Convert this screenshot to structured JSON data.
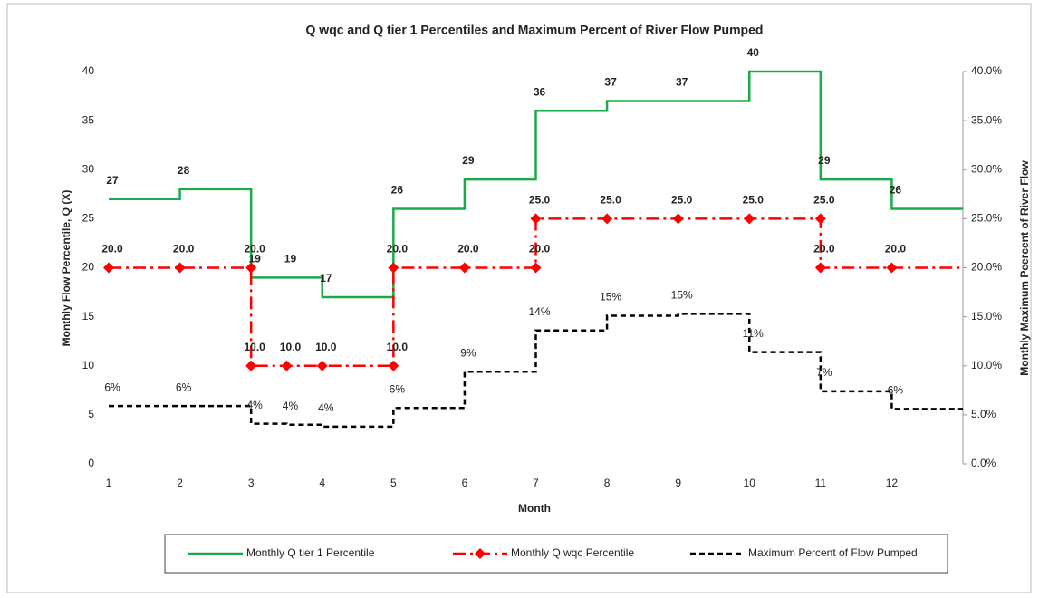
{
  "chart_data": {
    "type": "line",
    "title": "Q wqc and Q tier 1 Percentiles and Maximum Percent of River Flow Pumped",
    "xlabel": "Month",
    "ylabel": "Monthly Flow Percentile, Q (X)",
    "y2label": "Monthly Maximum Peercent of River Flow",
    "xlim": [
      1,
      13
    ],
    "xticks": [
      1,
      2,
      3,
      4,
      5,
      6,
      7,
      8,
      9,
      10,
      11,
      12
    ],
    "ylim": [
      0,
      40
    ],
    "yticks": [
      0,
      5,
      10,
      15,
      20,
      25,
      30,
      35,
      40
    ],
    "y2lim": [
      0,
      40
    ],
    "y2ticks": [
      {
        "value": 0,
        "label": "0.0%"
      },
      {
        "value": 5,
        "label": "5.0%"
      },
      {
        "value": 10,
        "label": "10.0%"
      },
      {
        "value": 15,
        "label": "15.0%"
      },
      {
        "value": 20,
        "label": "20.0%"
      },
      {
        "value": 25,
        "label": "25.0%"
      },
      {
        "value": 30,
        "label": "30.0%"
      },
      {
        "value": 35,
        "label": "35.0%"
      },
      {
        "value": 40,
        "label": "40.0%"
      }
    ],
    "series": [
      {
        "name": "Monthly Q tier 1 Percentile",
        "color": "#1aaa4a",
        "dash": "none",
        "marker": false,
        "x": [
          1,
          2,
          3,
          3.5,
          4,
          5,
          6,
          7,
          8,
          9,
          10,
          11,
          12
        ],
        "values": [
          27,
          28,
          19,
          19,
          17,
          26,
          29,
          36,
          37,
          37,
          40,
          29,
          26
        ]
      },
      {
        "name": "Monthly Q wqc Percentile",
        "color": "#ff0000",
        "dash": "14 5 3 5",
        "marker": true,
        "x": [
          1,
          2,
          3,
          3,
          3.5,
          4,
          5,
          5,
          6,
          7,
          7,
          8,
          9,
          10,
          11,
          11,
          12
        ],
        "values": [
          20,
          20,
          20,
          10,
          10,
          10,
          10,
          20,
          20,
          20,
          25,
          25,
          25,
          25,
          25,
          20,
          20
        ],
        "value_labels": [
          "20.0",
          "20.0",
          "20.0",
          "10.0",
          "10.0",
          "10.0",
          "10.0",
          "20.0",
          "20.0",
          "20.0",
          "25.0",
          "25.0",
          "25.0",
          "25.0",
          "25.0",
          "20.0",
          "20.0"
        ]
      },
      {
        "name": "Maximum Percent of Flow Pumped",
        "color": "#000000",
        "dash": "6 4",
        "marker": false,
        "axis": "y2",
        "x": [
          1,
          2,
          3,
          3.5,
          4,
          5,
          6,
          7,
          8,
          9,
          10,
          11,
          12
        ],
        "values": [
          5.9,
          5.9,
          4.1,
          4.0,
          3.8,
          5.7,
          9.4,
          13.6,
          15.1,
          15.3,
          11.4,
          7.4,
          5.6
        ],
        "value_labels": [
          "6%",
          "6%",
          "4%",
          "4%",
          "4%",
          "6%",
          "9%",
          "14%",
          "15%",
          "15%",
          "11%",
          "7%",
          "6%"
        ]
      }
    ]
  }
}
